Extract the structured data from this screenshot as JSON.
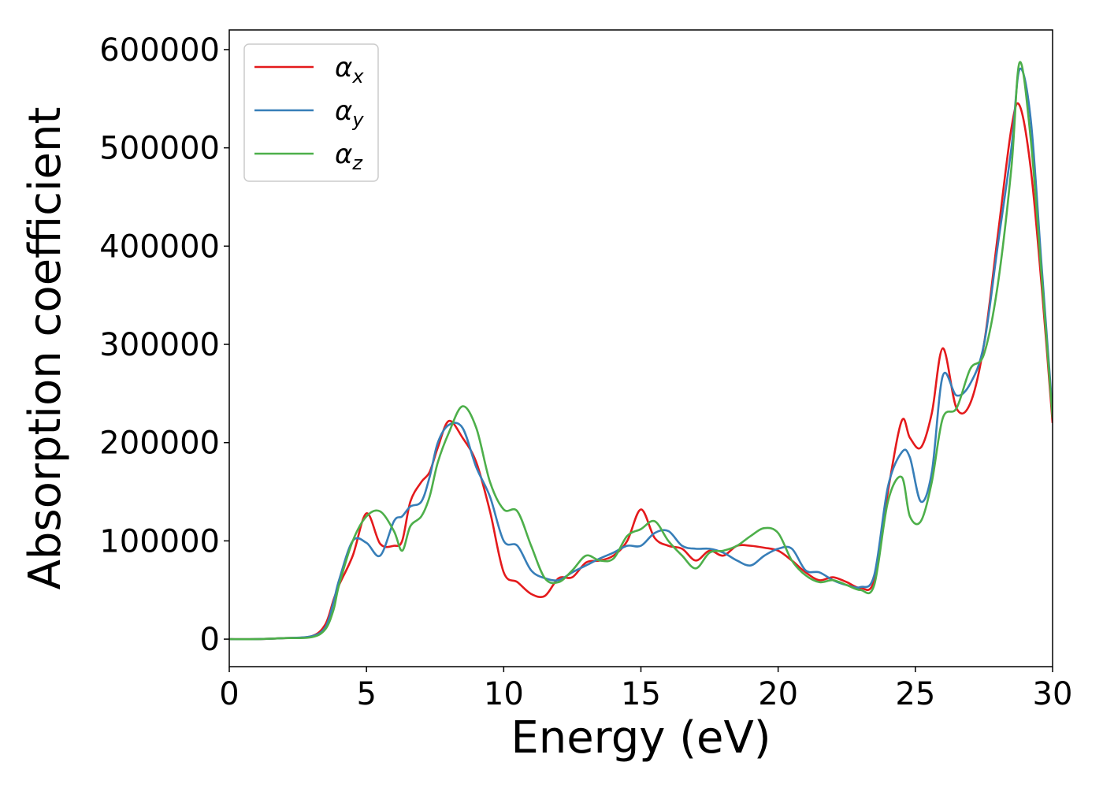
{
  "chart_data": {
    "type": "line",
    "xlabel": "Energy (eV)",
    "ylabel": "Absorption coefficient",
    "xlim": [
      0,
      30
    ],
    "ylim": [
      -28000,
      620000
    ],
    "x_ticks": [
      0,
      5,
      10,
      15,
      20,
      25,
      30
    ],
    "y_ticks": [
      0,
      100000,
      200000,
      300000,
      400000,
      500000,
      600000
    ],
    "grid": false,
    "legend_position": "top-left",
    "series": [
      {
        "name": "αx",
        "symbol": "α",
        "subscript": "x",
        "color": "#e41a1c",
        "x": [
          0,
          1,
          2,
          3,
          3.5,
          3.8,
          4,
          4.5,
          5,
          5.5,
          6,
          6.3,
          6.6,
          7,
          7.3,
          7.6,
          8,
          8.5,
          9,
          9.5,
          10,
          10.5,
          11,
          11.5,
          12,
          12.5,
          13,
          13.5,
          14,
          14.5,
          15,
          15.5,
          16,
          16.5,
          17,
          17.5,
          18,
          18.5,
          19,
          19.5,
          20,
          20.5,
          21,
          21.5,
          22,
          22.5,
          23,
          23.5,
          24,
          24.5,
          24.8,
          25.2,
          25.6,
          26,
          26.5,
          27,
          27.5,
          28,
          28.5,
          28.8,
          29.2,
          29.6,
          30
        ],
        "y": [
          0,
          0,
          1000,
          3000,
          15000,
          40000,
          55000,
          85000,
          128000,
          97000,
          95000,
          100000,
          140000,
          160000,
          170000,
          195000,
          222000,
          205000,
          180000,
          130000,
          68000,
          58000,
          46000,
          44000,
          62000,
          63000,
          78000,
          80000,
          85000,
          100000,
          132000,
          103000,
          95000,
          92000,
          80000,
          90000,
          85000,
          95000,
          95000,
          93000,
          90000,
          80000,
          68000,
          60000,
          63000,
          58000,
          52000,
          60000,
          150000,
          222000,
          205000,
          195000,
          230000,
          296000,
          235000,
          240000,
          300000,
          410000,
          520000,
          543000,
          480000,
          360000,
          220000
        ]
      },
      {
        "name": "αy",
        "symbol": "α",
        "subscript": "y",
        "color": "#377eb8",
        "x": [
          0,
          1,
          2,
          3,
          3.5,
          3.8,
          4,
          4.5,
          5,
          5.5,
          6,
          6.3,
          6.6,
          7,
          7.3,
          7.6,
          8,
          8.5,
          9,
          9.5,
          10,
          10.5,
          11,
          11.5,
          12,
          12.5,
          13,
          13.5,
          14,
          14.5,
          15,
          15.5,
          16,
          16.5,
          17,
          17.5,
          18,
          18.5,
          19,
          19.5,
          20,
          20.5,
          21,
          21.5,
          22,
          22.5,
          23,
          23.5,
          24,
          24.5,
          24.8,
          25.2,
          25.6,
          26,
          26.5,
          27,
          27.5,
          28,
          28.5,
          28.8,
          29.2,
          29.6,
          30
        ],
        "y": [
          0,
          0,
          1000,
          3000,
          12000,
          38000,
          60000,
          100000,
          98000,
          85000,
          120000,
          125000,
          135000,
          140000,
          165000,
          200000,
          218000,
          215000,
          175000,
          145000,
          100000,
          95000,
          70000,
          62000,
          60000,
          68000,
          75000,
          82000,
          88000,
          95000,
          95000,
          108000,
          110000,
          95000,
          92000,
          92000,
          88000,
          80000,
          75000,
          85000,
          92000,
          92000,
          70000,
          68000,
          60000,
          55000,
          53000,
          65000,
          155000,
          190000,
          185000,
          140000,
          170000,
          268000,
          248000,
          260000,
          300000,
          400000,
          500000,
          580000,
          530000,
          380000,
          230000
        ]
      },
      {
        "name": "αz",
        "symbol": "α",
        "subscript": "z",
        "color": "#4daf4a",
        "x": [
          0,
          1,
          2,
          3,
          3.5,
          3.8,
          4,
          4.5,
          5,
          5.5,
          6,
          6.3,
          6.6,
          7,
          7.3,
          7.6,
          8,
          8.5,
          9,
          9.5,
          10,
          10.5,
          11,
          11.5,
          12,
          12.5,
          13,
          13.5,
          14,
          14.5,
          15,
          15.5,
          16,
          16.5,
          17,
          17.5,
          18,
          18.5,
          19,
          19.5,
          20,
          20.5,
          21,
          21.5,
          22,
          22.5,
          23,
          23.5,
          24,
          24.5,
          24.8,
          25.2,
          25.6,
          26,
          26.5,
          27,
          27.5,
          28,
          28.5,
          28.8,
          29.2,
          29.6,
          30
        ],
        "y": [
          0,
          0,
          1000,
          2000,
          10000,
          30000,
          55000,
          100000,
          125000,
          130000,
          110000,
          90000,
          115000,
          125000,
          145000,
          180000,
          210000,
          237000,
          215000,
          160000,
          132000,
          130000,
          95000,
          62000,
          58000,
          70000,
          85000,
          80000,
          82000,
          105000,
          112000,
          120000,
          100000,
          85000,
          72000,
          88000,
          90000,
          95000,
          105000,
          113000,
          108000,
          80000,
          65000,
          58000,
          60000,
          55000,
          50000,
          55000,
          140000,
          165000,
          125000,
          120000,
          160000,
          225000,
          235000,
          275000,
          290000,
          360000,
          480000,
          587000,
          510000,
          370000,
          225000
        ]
      }
    ]
  }
}
